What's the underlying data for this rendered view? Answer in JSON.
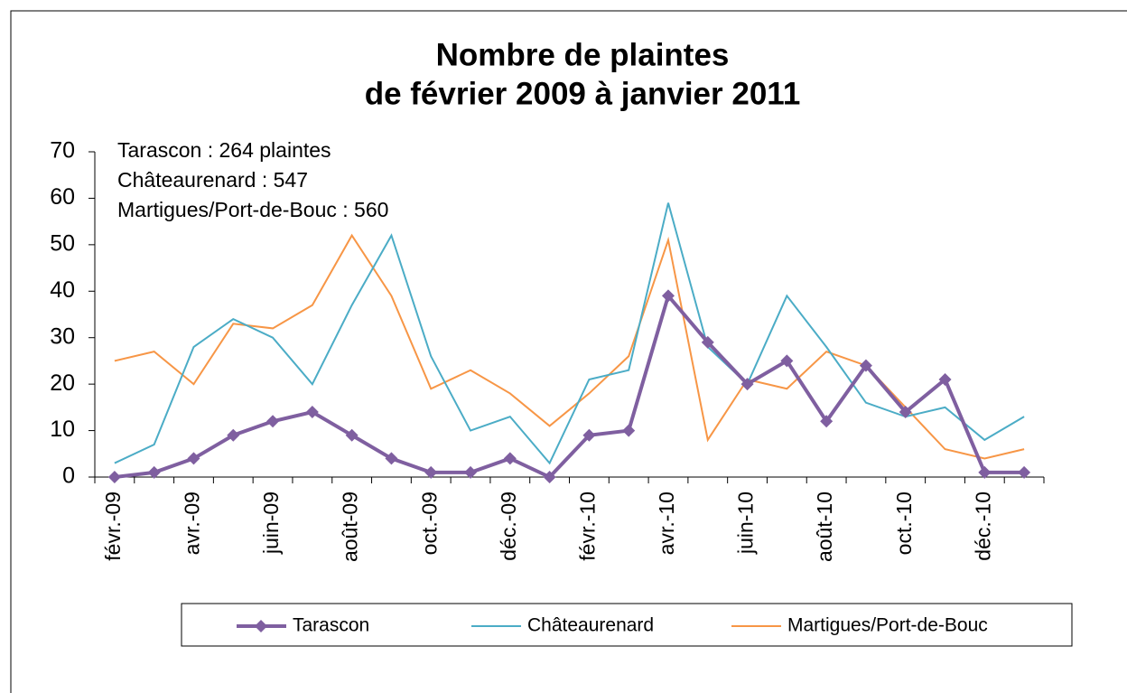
{
  "chart_data": {
    "type": "line",
    "title": "Nombre de plaintes",
    "subtitle": "de février 2009 à janvier 2011",
    "annotations": [
      "Tarascon  : 264 plaintes",
      "Châteaurenard :  547",
      "Martigues/Port-de-Bouc : 560"
    ],
    "categories": [
      "févr.-09",
      null,
      "avr.-09",
      null,
      "juin-09",
      null,
      "août-09",
      null,
      "oct.-09",
      null,
      "déc.-09",
      null,
      "févr.-10",
      null,
      "avr.-10",
      null,
      "juin-10",
      null,
      "août-10",
      null,
      "oct.-10",
      null,
      "déc.-10",
      null
    ],
    "series": [
      {
        "name": "Tarascon",
        "color": "#7f5fa0",
        "marker": "diamond",
        "values": [
          0,
          1,
          4,
          9,
          12,
          14,
          9,
          4,
          1,
          1,
          4,
          0,
          9,
          10,
          39,
          29,
          20,
          25,
          12,
          24,
          14,
          21,
          1,
          1
        ]
      },
      {
        "name": "Châteaurenard",
        "color": "#4bacc6",
        "values": [
          3,
          7,
          28,
          34,
          30,
          20,
          37,
          52,
          26,
          10,
          13,
          3,
          21,
          23,
          59,
          28,
          20,
          39,
          28,
          16,
          13,
          15,
          8,
          13
        ]
      },
      {
        "name": "Martigues/Port-de-Bouc",
        "color": "#f79646",
        "values": [
          25,
          27,
          20,
          33,
          32,
          37,
          52,
          39,
          19,
          23,
          18,
          11,
          18,
          26,
          51,
          8,
          21,
          19,
          27,
          24,
          15,
          6,
          4,
          6
        ]
      }
    ],
    "ylim": [
      0,
      70
    ],
    "yticks": [
      0,
      10,
      20,
      30,
      40,
      50,
      60,
      70
    ],
    "grid": false,
    "legend": "bottom"
  }
}
